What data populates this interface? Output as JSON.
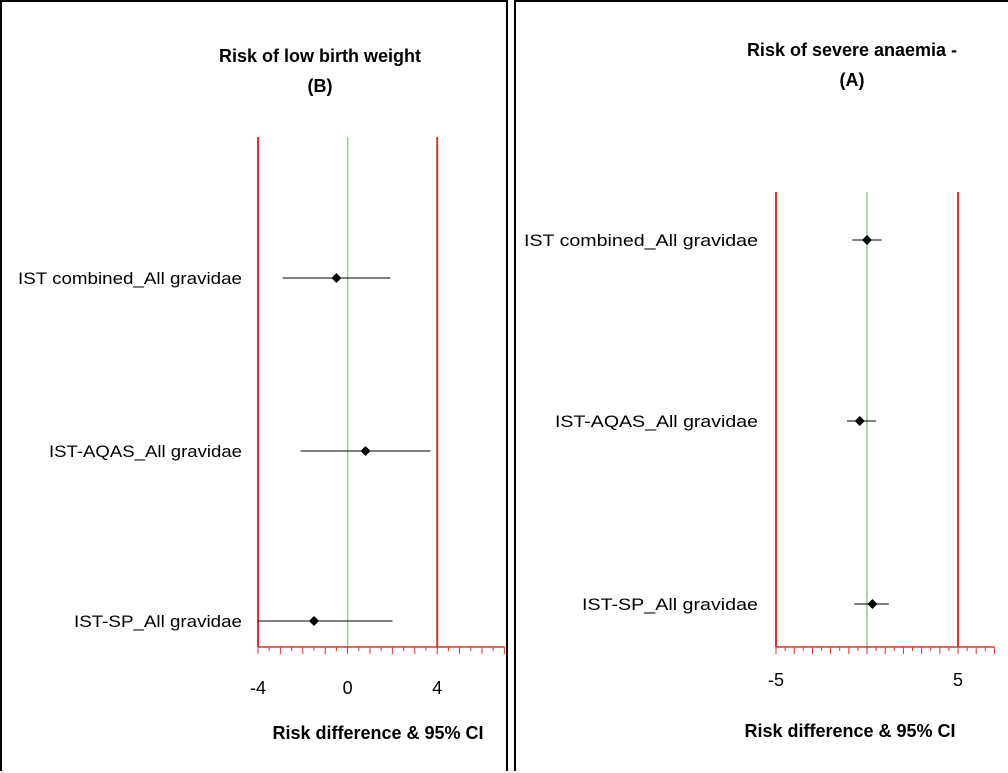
{
  "chart_data": [
    {
      "type": "forest",
      "title": [
        "Risk of low birth weight",
        "(B)"
      ],
      "xlabel": "Risk difference & 95%  CI",
      "xlim": [
        -4,
        7
      ],
      "x_ticks": [
        "-4",
        "0",
        "4"
      ],
      "reference_lines": {
        "null_effect": 0,
        "bounds": [
          -4,
          4
        ]
      },
      "rows": [
        {
          "label": "IST combined_All gravidae",
          "estimate": -0.5,
          "ci": [
            -2.9,
            1.9
          ]
        },
        {
          "label": "IST-AQAS_All gravidae",
          "estimate": 0.8,
          "ci": [
            -2.1,
            3.7
          ]
        },
        {
          "label": "IST-SP_All gravidae",
          "estimate": -1.5,
          "ci": [
            -4.0,
            2.0
          ]
        }
      ],
      "colors": {
        "bounds": "#e03030",
        "null_line": "#8fcf8f",
        "axis": "#e03030",
        "marker": "#000000"
      }
    },
    {
      "type": "forest",
      "title": [
        "Risk of severe anaemia -",
        "(A)"
      ],
      "xlabel": "Risk difference & 95%  CI",
      "xlim": [
        -5,
        7
      ],
      "x_ticks": [
        "-5",
        "5"
      ],
      "reference_lines": {
        "null_effect": 0,
        "bounds": [
          -5,
          5
        ]
      },
      "rows": [
        {
          "label": "IST combined_All gravidae",
          "estimate": 0,
          "ci": [
            -0.8,
            0.8
          ]
        },
        {
          "label": "IST-AQAS_All gravidae",
          "estimate": -0.4,
          "ci": [
            -1.1,
            0.5
          ]
        },
        {
          "label": "IST-SP_All gravidae",
          "estimate": 0.3,
          "ci": [
            -0.7,
            1.2
          ]
        }
      ],
      "colors": {
        "bounds": "#e03030",
        "null_line": "#8fcf8f",
        "axis": "#e03030",
        "marker": "#000000"
      }
    }
  ]
}
